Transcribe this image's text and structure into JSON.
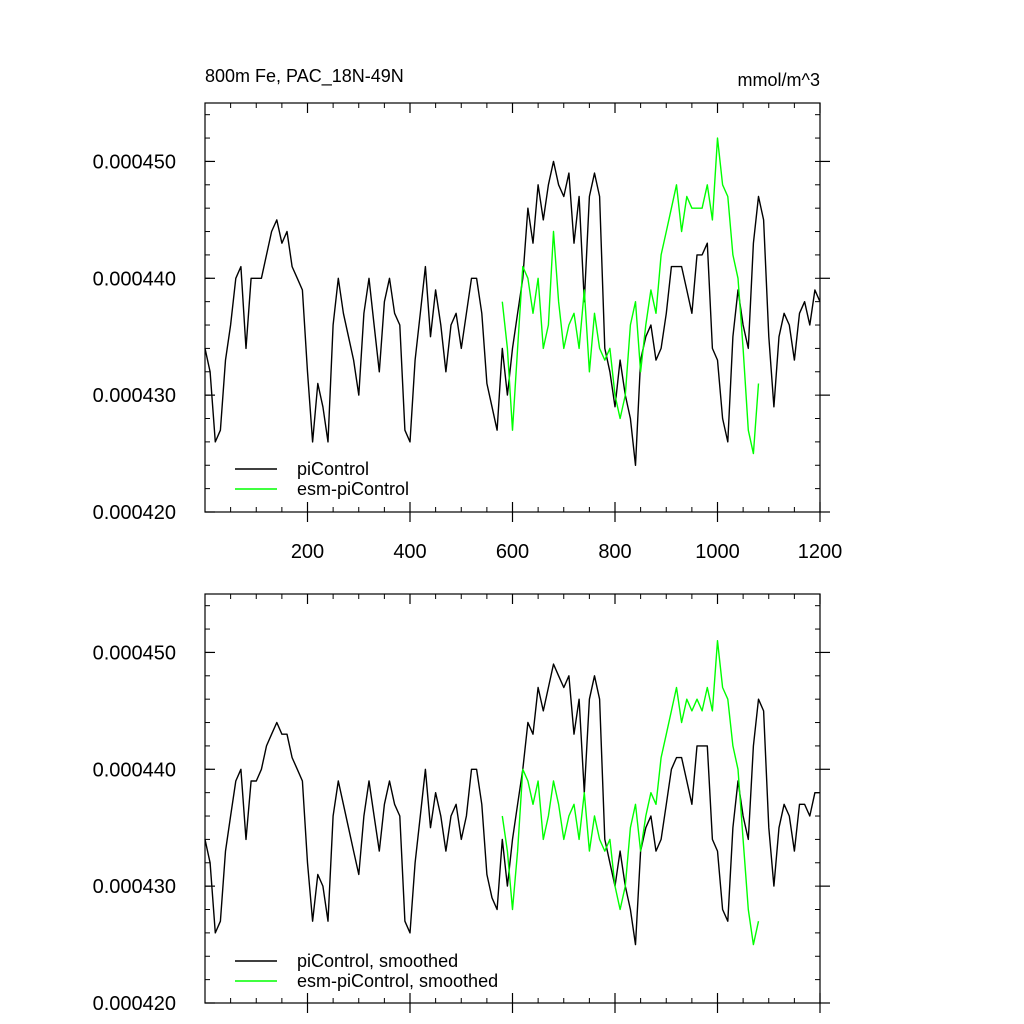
{
  "chart_data": [
    {
      "type": "line",
      "title": "800m Fe, PAC_18N-49N",
      "units_label": "mmol/m^3",
      "xlim": [
        0,
        1200
      ],
      "ylim": [
        0.00042,
        0.000455
      ],
      "x_ticks": [
        200,
        400,
        600,
        800,
        1000,
        1200
      ],
      "x_tick_labels": [
        "200",
        "400",
        "600",
        "800",
        "1000",
        "1200"
      ],
      "y_ticks": [
        0.00042,
        0.00043,
        0.00044,
        0.00045
      ],
      "y_tick_labels": [
        "0.000420",
        "0.000430",
        "0.000440",
        "0.000450"
      ],
      "legend_position": "bottom-left",
      "grid": false,
      "series": [
        {
          "name": "piControl",
          "color": "#000000",
          "x": [
            0,
            10,
            20,
            30,
            40,
            50,
            60,
            70,
            80,
            90,
            100,
            110,
            120,
            130,
            140,
            150,
            160,
            170,
            180,
            190,
            200,
            210,
            220,
            230,
            240,
            250,
            260,
            270,
            280,
            290,
            300,
            310,
            320,
            330,
            340,
            350,
            360,
            370,
            380,
            390,
            400,
            410,
            420,
            430,
            440,
            450,
            460,
            470,
            480,
            490,
            500,
            510,
            520,
            530,
            540,
            550,
            560,
            570,
            580,
            590,
            600,
            610,
            620,
            630,
            640,
            650,
            660,
            670,
            680,
            690,
            700,
            710,
            720,
            730,
            740,
            750,
            760,
            770,
            780,
            790,
            800,
            810,
            820,
            830,
            840,
            850,
            860,
            870,
            880,
            890,
            900,
            910,
            920,
            930,
            940,
            950,
            960,
            970,
            980,
            990,
            1000,
            1010,
            1020,
            1030,
            1040,
            1050,
            1060,
            1070,
            1080,
            1090,
            1100,
            1110,
            1120,
            1130,
            1140,
            1150,
            1160,
            1170,
            1180,
            1190,
            1200
          ],
          "values": [
            0.000434,
            0.000432,
            0.000426,
            0.000427,
            0.000433,
            0.000436,
            0.00044,
            0.000441,
            0.000434,
            0.00044,
            0.00044,
            0.00044,
            0.000442,
            0.000444,
            0.000445,
            0.000443,
            0.000444,
            0.000441,
            0.00044,
            0.000439,
            0.000432,
            0.000426,
            0.000431,
            0.000429,
            0.000426,
            0.000436,
            0.00044,
            0.000437,
            0.000435,
            0.000433,
            0.00043,
            0.000437,
            0.00044,
            0.000436,
            0.000432,
            0.000438,
            0.00044,
            0.000437,
            0.000436,
            0.000427,
            0.000426,
            0.000433,
            0.000437,
            0.000441,
            0.000435,
            0.000439,
            0.000436,
            0.000432,
            0.000436,
            0.000437,
            0.000434,
            0.000437,
            0.00044,
            0.00044,
            0.000437,
            0.000431,
            0.000429,
            0.000427,
            0.000434,
            0.00043,
            0.000434,
            0.000437,
            0.00044,
            0.000446,
            0.000443,
            0.000448,
            0.000445,
            0.000448,
            0.00045,
            0.000448,
            0.000447,
            0.000449,
            0.000443,
            0.000447,
            0.000438,
            0.000447,
            0.000449,
            0.000447,
            0.000434,
            0.000432,
            0.000429,
            0.000433,
            0.00043,
            0.000428,
            0.000424,
            0.000433,
            0.000435,
            0.000436,
            0.000433,
            0.000434,
            0.000437,
            0.000441,
            0.000441,
            0.000441,
            0.000439,
            0.000437,
            0.000442,
            0.000442,
            0.000443,
            0.000434,
            0.000433,
            0.000428,
            0.000426,
            0.000435,
            0.000439,
            0.000436,
            0.000434,
            0.000443,
            0.000447,
            0.000445,
            0.000435,
            0.000429,
            0.000435,
            0.000437,
            0.000436,
            0.000433,
            0.000437,
            0.000438,
            0.000436,
            0.000439,
            0.000438
          ]
        },
        {
          "name": "esm-piControl",
          "color": "#00ff00",
          "x": [
            580,
            590,
            600,
            610,
            620,
            630,
            640,
            650,
            660,
            670,
            680,
            690,
            700,
            710,
            720,
            730,
            740,
            750,
            760,
            770,
            780,
            790,
            800,
            810,
            820,
            830,
            840,
            850,
            860,
            870,
            880,
            890,
            900,
            910,
            920,
            930,
            940,
            950,
            960,
            970,
            980,
            990,
            1000,
            1010,
            1020,
            1030,
            1040,
            1050,
            1060,
            1070,
            1080
          ],
          "values": [
            0.000438,
            0.000434,
            0.000427,
            0.000434,
            0.000441,
            0.00044,
            0.000437,
            0.00044,
            0.000434,
            0.000436,
            0.000444,
            0.000438,
            0.000434,
            0.000436,
            0.000437,
            0.000434,
            0.000439,
            0.000432,
            0.000437,
            0.000434,
            0.000433,
            0.000434,
            0.00043,
            0.000428,
            0.00043,
            0.000436,
            0.000438,
            0.000432,
            0.000436,
            0.000439,
            0.000437,
            0.000442,
            0.000444,
            0.000446,
            0.000448,
            0.000444,
            0.000447,
            0.000446,
            0.000446,
            0.000446,
            0.000448,
            0.000445,
            0.000452,
            0.000448,
            0.000447,
            0.000442,
            0.00044,
            0.000434,
            0.000427,
            0.000425,
            0.000431
          ]
        }
      ]
    },
    {
      "type": "line",
      "xlim": [
        0,
        1200
      ],
      "ylim": [
        0.00042,
        0.000455
      ],
      "y_ticks": [
        0.00042,
        0.00043,
        0.00044,
        0.00045
      ],
      "y_tick_labels": [
        "0.000420",
        "0.000430",
        "0.000440",
        "0.000450"
      ],
      "legend_position": "bottom-left",
      "grid": false,
      "series": [
        {
          "name": "piControl, smoothed",
          "color": "#000000",
          "x": [
            0,
            10,
            20,
            30,
            40,
            50,
            60,
            70,
            80,
            90,
            100,
            110,
            120,
            130,
            140,
            150,
            160,
            170,
            180,
            190,
            200,
            210,
            220,
            230,
            240,
            250,
            260,
            270,
            280,
            290,
            300,
            310,
            320,
            330,
            340,
            350,
            360,
            370,
            380,
            390,
            400,
            410,
            420,
            430,
            440,
            450,
            460,
            470,
            480,
            490,
            500,
            510,
            520,
            530,
            540,
            550,
            560,
            570,
            580,
            590,
            600,
            610,
            620,
            630,
            640,
            650,
            660,
            670,
            680,
            690,
            700,
            710,
            720,
            730,
            740,
            750,
            760,
            770,
            780,
            790,
            800,
            810,
            820,
            830,
            840,
            850,
            860,
            870,
            880,
            890,
            900,
            910,
            920,
            930,
            940,
            950,
            960,
            970,
            980,
            990,
            1000,
            1010,
            1020,
            1030,
            1040,
            1050,
            1060,
            1070,
            1080,
            1090,
            1100,
            1110,
            1120,
            1130,
            1140,
            1150,
            1160,
            1170,
            1180,
            1190,
            1200
          ],
          "values": [
            0.000434,
            0.000432,
            0.000426,
            0.000427,
            0.000433,
            0.000436,
            0.000439,
            0.00044,
            0.000434,
            0.000439,
            0.000439,
            0.00044,
            0.000442,
            0.000443,
            0.000444,
            0.000443,
            0.000443,
            0.000441,
            0.00044,
            0.000439,
            0.000432,
            0.000427,
            0.000431,
            0.00043,
            0.000427,
            0.000436,
            0.000439,
            0.000437,
            0.000435,
            0.000433,
            0.000431,
            0.000436,
            0.000439,
            0.000436,
            0.000433,
            0.000437,
            0.000439,
            0.000437,
            0.000436,
            0.000427,
            0.000426,
            0.000432,
            0.000436,
            0.00044,
            0.000435,
            0.000438,
            0.000436,
            0.000433,
            0.000436,
            0.000437,
            0.000434,
            0.000436,
            0.00044,
            0.00044,
            0.000437,
            0.000431,
            0.000429,
            0.000428,
            0.000434,
            0.00043,
            0.000434,
            0.000437,
            0.00044,
            0.000444,
            0.000443,
            0.000447,
            0.000445,
            0.000447,
            0.000449,
            0.000448,
            0.000447,
            0.000448,
            0.000443,
            0.000446,
            0.000438,
            0.000446,
            0.000448,
            0.000446,
            0.000434,
            0.000432,
            0.00043,
            0.000433,
            0.00043,
            0.000428,
            0.000425,
            0.000433,
            0.000435,
            0.000436,
            0.000433,
            0.000434,
            0.000437,
            0.00044,
            0.000441,
            0.000441,
            0.000439,
            0.000437,
            0.000442,
            0.000442,
            0.000442,
            0.000434,
            0.000433,
            0.000428,
            0.000427,
            0.000435,
            0.000439,
            0.000436,
            0.000434,
            0.000442,
            0.000446,
            0.000445,
            0.000435,
            0.00043,
            0.000435,
            0.000437,
            0.000436,
            0.000433,
            0.000437,
            0.000437,
            0.000436,
            0.000438,
            0.000438
          ]
        },
        {
          "name": "esm-piControl, smoothed",
          "color": "#00ff00",
          "x": [
            580,
            590,
            600,
            610,
            620,
            630,
            640,
            650,
            660,
            670,
            680,
            690,
            700,
            710,
            720,
            730,
            740,
            750,
            760,
            770,
            780,
            790,
            800,
            810,
            820,
            830,
            840,
            850,
            860,
            870,
            880,
            890,
            900,
            910,
            920,
            930,
            940,
            950,
            960,
            970,
            980,
            990,
            1000,
            1010,
            1020,
            1030,
            1040,
            1050,
            1060,
            1070,
            1080
          ],
          "values": [
            0.000436,
            0.000433,
            0.000428,
            0.000433,
            0.00044,
            0.000439,
            0.000437,
            0.000439,
            0.000434,
            0.000436,
            0.000439,
            0.000437,
            0.000434,
            0.000436,
            0.000437,
            0.000434,
            0.000438,
            0.000433,
            0.000436,
            0.000434,
            0.000433,
            0.000434,
            0.00043,
            0.000428,
            0.00043,
            0.000435,
            0.000437,
            0.000433,
            0.000436,
            0.000438,
            0.000437,
            0.000441,
            0.000443,
            0.000445,
            0.000447,
            0.000444,
            0.000446,
            0.000445,
            0.000446,
            0.000445,
            0.000447,
            0.000445,
            0.000451,
            0.000447,
            0.000446,
            0.000442,
            0.00044,
            0.000434,
            0.000428,
            0.000425,
            0.000427
          ]
        }
      ]
    }
  ]
}
